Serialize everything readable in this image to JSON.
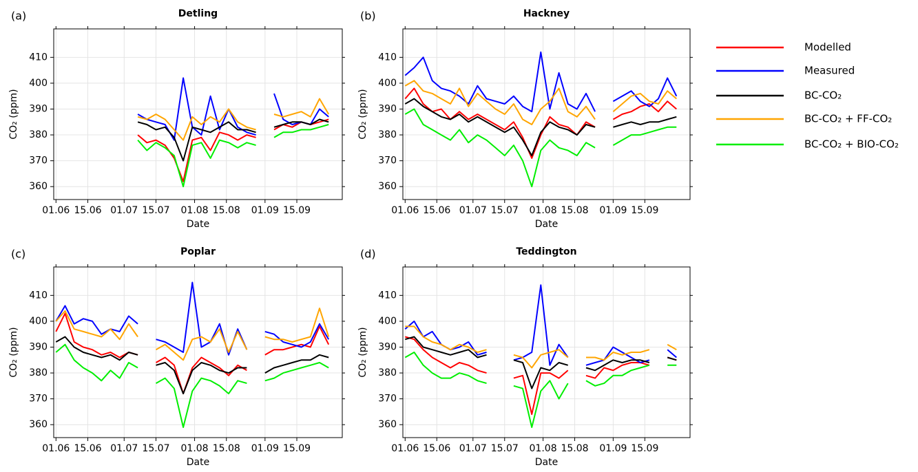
{
  "chart_data": [
    {
      "type": "line",
      "label": "(a)",
      "title": "Detling",
      "xlabel": "Date",
      "ylabel": "CO₂ (ppm)",
      "x": [
        "01.06",
        "05.06",
        "09.06",
        "13.06",
        "17.06",
        "21.06",
        "25.06",
        "29.06",
        "03.07",
        "07.07",
        "11.07",
        "15.07",
        "19.07",
        "23.07",
        "27.07",
        "31.07",
        "04.08",
        "08.08",
        "12.08",
        "16.08",
        "20.08",
        "24.08",
        "28.08",
        "01.09",
        "05.09",
        "09.09",
        "13.09",
        "17.09",
        "21.09",
        "25.09",
        "29.09"
      ],
      "xlim": [
        "31.05",
        "05.10"
      ],
      "xticks": [
        "01.06",
        "15.06",
        "01.07",
        "15.07",
        "01.08",
        "15.08",
        "01.09",
        "15.09"
      ],
      "ylim": [
        355,
        421
      ],
      "yticks": [
        360,
        370,
        380,
        390,
        400,
        410
      ],
      "grid": true,
      "series": [
        {
          "name": "Modelled",
          "color": "#ff0000",
          "values": [
            null,
            null,
            null,
            null,
            null,
            null,
            null,
            null,
            null,
            380,
            377,
            378,
            376,
            371,
            362,
            378,
            379,
            374,
            381,
            380,
            378,
            380,
            379,
            null,
            382,
            384,
            383,
            385,
            384,
            385,
            386
          ]
        },
        {
          "name": "Measured",
          "color": "#0000ff",
          "values": [
            null,
            null,
            null,
            null,
            null,
            null,
            null,
            null,
            null,
            388,
            386,
            385,
            384,
            378,
            402,
            383,
            380,
            395,
            382,
            390,
            383,
            381,
            380,
            null,
            396,
            386,
            384,
            385,
            384,
            390,
            387
          ]
        },
        {
          "name": "BC-CO₂",
          "color": "#000000",
          "values": [
            null,
            null,
            null,
            null,
            null,
            null,
            null,
            null,
            null,
            385,
            384,
            382,
            383,
            379,
            370,
            383,
            382,
            381,
            383,
            385,
            382,
            382,
            381,
            null,
            383,
            384,
            385,
            385,
            384,
            386,
            385
          ]
        },
        {
          "name": "BC-CO₂ + FF-CO₂",
          "color": "#ffa500",
          "values": [
            null,
            null,
            null,
            null,
            null,
            null,
            null,
            null,
            null,
            387,
            386,
            388,
            386,
            382,
            378,
            387,
            384,
            387,
            385,
            390,
            385,
            383,
            382,
            null,
            388,
            387,
            388,
            389,
            387,
            394,
            388
          ]
        },
        {
          "name": "BC-CO₂ + BIO-CO₂",
          "color": "#00ee00",
          "values": [
            null,
            null,
            null,
            null,
            null,
            null,
            null,
            null,
            null,
            378,
            374,
            377,
            375,
            372,
            360,
            376,
            377,
            371,
            378,
            377,
            375,
            377,
            376,
            null,
            379,
            381,
            381,
            382,
            382,
            383,
            384
          ]
        }
      ]
    },
    {
      "type": "line",
      "label": "(b)",
      "title": "Hackney",
      "xlabel": "Date",
      "ylabel": "CO₂ (ppm)",
      "x": [
        "01.06",
        "05.06",
        "09.06",
        "13.06",
        "17.06",
        "21.06",
        "25.06",
        "29.06",
        "03.07",
        "07.07",
        "11.07",
        "15.07",
        "19.07",
        "23.07",
        "27.07",
        "31.07",
        "04.08",
        "08.08",
        "12.08",
        "16.08",
        "20.08",
        "24.08",
        "28.08",
        "01.09",
        "05.09",
        "09.09",
        "13.09",
        "17.09",
        "21.09",
        "25.09",
        "29.09"
      ],
      "xlim": [
        "31.05",
        "05.10"
      ],
      "xticks": [
        "01.06",
        "15.06",
        "01.07",
        "15.07",
        "01.08",
        "15.08",
        "01.09",
        "15.09"
      ],
      "ylim": [
        355,
        421
      ],
      "yticks": [
        360,
        370,
        380,
        390,
        400,
        410
      ],
      "grid": true,
      "series": [
        {
          "name": "Modelled",
          "color": "#ff0000",
          "values": [
            394,
            398,
            392,
            389,
            390,
            386,
            389,
            386,
            388,
            386,
            384,
            382,
            385,
            379,
            371,
            380,
            387,
            384,
            383,
            380,
            385,
            383,
            null,
            386,
            388,
            389,
            391,
            392,
            389,
            393,
            390
          ]
        },
        {
          "name": "Measured",
          "color": "#0000ff",
          "values": [
            403,
            406,
            410,
            401,
            398,
            397,
            395,
            392,
            399,
            394,
            393,
            392,
            395,
            391,
            389,
            412,
            390,
            404,
            392,
            390,
            396,
            389,
            null,
            393,
            395,
            397,
            393,
            391,
            394,
            402,
            395
          ]
        },
        {
          "name": "BC-CO₂",
          "color": "#000000",
          "values": [
            392,
            394,
            391,
            389,
            387,
            386,
            388,
            385,
            387,
            385,
            383,
            381,
            383,
            378,
            372,
            381,
            385,
            383,
            382,
            380,
            384,
            383,
            null,
            383,
            384,
            385,
            384,
            385,
            385,
            386,
            387
          ]
        },
        {
          "name": "BC-CO₂ + FF-CO₂",
          "color": "#ffa500",
          "values": [
            399,
            401,
            397,
            396,
            394,
            392,
            398,
            391,
            396,
            393,
            390,
            388,
            392,
            386,
            384,
            390,
            393,
            398,
            389,
            387,
            391,
            386,
            null,
            389,
            392,
            395,
            396,
            393,
            392,
            397,
            394
          ]
        },
        {
          "name": "BC-CO₂ + BIO-CO₂",
          "color": "#00ee00",
          "values": [
            388,
            390,
            384,
            382,
            380,
            378,
            382,
            377,
            380,
            378,
            375,
            372,
            376,
            370,
            360,
            374,
            378,
            375,
            374,
            372,
            377,
            375,
            null,
            376,
            378,
            380,
            380,
            381,
            382,
            383,
            383
          ]
        }
      ]
    },
    {
      "type": "line",
      "label": "(c)",
      "title": "Poplar",
      "xlabel": "Date",
      "ylabel": "CO₂ (ppm)",
      "x": [
        "01.06",
        "05.06",
        "09.06",
        "13.06",
        "17.06",
        "21.06",
        "25.06",
        "29.06",
        "03.07",
        "07.07",
        "11.07",
        "15.07",
        "19.07",
        "23.07",
        "27.07",
        "31.07",
        "04.08",
        "08.08",
        "12.08",
        "16.08",
        "20.08",
        "24.08",
        "28.08",
        "01.09",
        "05.09",
        "09.09",
        "13.09",
        "17.09",
        "21.09",
        "25.09",
        "29.09"
      ],
      "xlim": [
        "31.05",
        "05.10"
      ],
      "xticks": [
        "01.06",
        "15.06",
        "01.07",
        "15.07",
        "01.08",
        "15.08",
        "01.09",
        "15.09"
      ],
      "ylim": [
        355,
        421
      ],
      "yticks": [
        360,
        370,
        380,
        390,
        400,
        410
      ],
      "grid": true,
      "series": [
        {
          "name": "Modelled",
          "color": "#ff0000",
          "values": [
            396,
            403,
            392,
            390,
            389,
            387,
            388,
            386,
            388,
            387,
            null,
            384,
            386,
            383,
            372,
            382,
            386,
            384,
            382,
            379,
            383,
            381,
            null,
            387,
            389,
            389,
            390,
            391,
            390,
            398,
            391
          ]
        },
        {
          "name": "Measured",
          "color": "#0000ff",
          "values": [
            400,
            406,
            399,
            401,
            400,
            395,
            397,
            396,
            402,
            399,
            null,
            393,
            392,
            390,
            388,
            415,
            390,
            392,
            399,
            387,
            397,
            389,
            null,
            396,
            395,
            392,
            391,
            390,
            392,
            399,
            393
          ]
        },
        {
          "name": "BC-CO₂",
          "color": "#000000",
          "values": [
            392,
            394,
            390,
            388,
            387,
            386,
            387,
            385,
            388,
            387,
            null,
            383,
            384,
            381,
            372,
            381,
            384,
            383,
            381,
            380,
            382,
            382,
            null,
            380,
            382,
            383,
            384,
            385,
            385,
            387,
            386
          ]
        },
        {
          "name": "BC-CO₂ + FF-CO₂",
          "color": "#ffa500",
          "values": [
            400,
            404,
            397,
            396,
            395,
            394,
            397,
            393,
            399,
            394,
            null,
            389,
            391,
            388,
            385,
            393,
            394,
            392,
            397,
            388,
            396,
            389,
            null,
            394,
            393,
            393,
            392,
            393,
            394,
            405,
            394
          ]
        },
        {
          "name": "BC-CO₂ + BIO-CO₂",
          "color": "#00ee00",
          "values": [
            388,
            391,
            385,
            382,
            380,
            377,
            381,
            378,
            384,
            382,
            null,
            376,
            378,
            374,
            359,
            373,
            378,
            377,
            375,
            372,
            377,
            376,
            null,
            377,
            378,
            380,
            381,
            382,
            383,
            384,
            382
          ]
        }
      ]
    },
    {
      "type": "line",
      "label": "(d)",
      "title": "Teddington",
      "xlabel": "Date",
      "ylabel": "CO₂ (ppm)",
      "x": [
        "01.06",
        "05.06",
        "09.06",
        "13.06",
        "17.06",
        "21.06",
        "25.06",
        "29.06",
        "03.07",
        "07.07",
        "11.07",
        "15.07",
        "19.07",
        "23.07",
        "27.07",
        "31.07",
        "04.08",
        "08.08",
        "12.08",
        "16.08",
        "20.08",
        "24.08",
        "28.08",
        "01.09",
        "05.09",
        "09.09",
        "13.09",
        "17.09",
        "21.09",
        "25.09",
        "29.09"
      ],
      "xlim": [
        "31.05",
        "05.10"
      ],
      "xticks": [
        "01.06",
        "15.06",
        "01.07",
        "15.07",
        "01.08",
        "15.08",
        "01.09",
        "15.09"
      ],
      "ylim": [
        355,
        421
      ],
      "yticks": [
        360,
        370,
        380,
        390,
        400,
        410
      ],
      "grid": true,
      "series": [
        {
          "name": "Modelled",
          "color": "#ff0000",
          "values": [
            394,
            393,
            389,
            386,
            384,
            382,
            384,
            383,
            381,
            380,
            null,
            null,
            378,
            379,
            364,
            380,
            380,
            378,
            381,
            null,
            379,
            378,
            382,
            381,
            383,
            384,
            384,
            383,
            null,
            386,
            385
          ]
        },
        {
          "name": "Measured",
          "color": "#0000ff",
          "values": [
            397,
            400,
            394,
            396,
            391,
            389,
            390,
            392,
            387,
            388,
            null,
            null,
            385,
            386,
            388,
            414,
            383,
            391,
            386,
            null,
            383,
            384,
            385,
            390,
            388,
            386,
            384,
            385,
            null,
            389,
            386
          ]
        },
        {
          "name": "BC-CO₂",
          "color": "#000000",
          "values": [
            393,
            394,
            390,
            389,
            388,
            387,
            388,
            389,
            386,
            387,
            null,
            null,
            385,
            384,
            374,
            382,
            381,
            384,
            383,
            null,
            382,
            381,
            383,
            385,
            384,
            385,
            385,
            384,
            null,
            386,
            385
          ]
        },
        {
          "name": "BC-CO₂ + FF-CO₂",
          "color": "#ffa500",
          "values": [
            398,
            398,
            394,
            392,
            391,
            389,
            391,
            390,
            388,
            389,
            null,
            null,
            387,
            386,
            382,
            387,
            388,
            389,
            386,
            null,
            386,
            386,
            385,
            388,
            387,
            388,
            388,
            389,
            null,
            391,
            389
          ]
        },
        {
          "name": "BC-CO₂ + BIO-CO₂",
          "color": "#00ee00",
          "values": [
            386,
            388,
            383,
            380,
            378,
            378,
            380,
            379,
            377,
            376,
            null,
            null,
            375,
            374,
            359,
            373,
            377,
            370,
            376,
            null,
            377,
            375,
            376,
            379,
            379,
            381,
            382,
            383,
            null,
            383,
            383
          ]
        }
      ]
    }
  ]
}
